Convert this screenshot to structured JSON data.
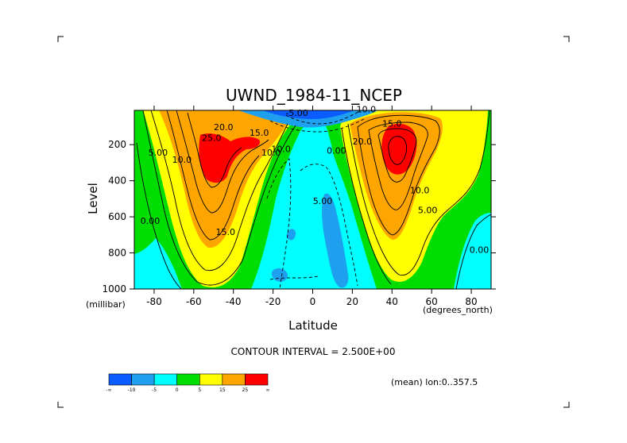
{
  "chart_data": {
    "type": "contour",
    "title": "UWND_1984-11_NCEP",
    "xlabel": "Latitude",
    "ylabel": "Level",
    "x_units": "(degrees_north)",
    "y_units": "(millibar)",
    "xlim": [
      -90,
      90
    ],
    "ylim": [
      1000,
      10
    ],
    "x_ticks": [
      -80,
      -60,
      -40,
      -20,
      0,
      20,
      40,
      60,
      80
    ],
    "y_ticks": [
      200,
      400,
      600,
      800,
      1000
    ],
    "contour_interval_label": "CONTOUR INTERVAL = 2.500E+00",
    "mean_label": "(mean) lon:0..357.5",
    "fill_levels": [
      {
        "range": "< -10",
        "color": "#0a5cff"
      },
      {
        "range": "-10 to -5",
        "color": "#1ea0ee"
      },
      {
        "range": "-5 to 0",
        "color": "#00ffff"
      },
      {
        "range": "0 to 5",
        "color": "#00dd00"
      },
      {
        "range": "5 to 15",
        "color": "#ffff00"
      },
      {
        "range": "15 to 25",
        "color": "#ffa500"
      },
      {
        "range": "> 25",
        "color": "#ff0000"
      }
    ],
    "colorbar_labels": [
      "-∞",
      "-10",
      "-5",
      "0",
      "5",
      "15",
      "25",
      "∞"
    ],
    "contour_labels": [
      {
        "text": "25.0",
        "lat": -51,
        "level": 180
      },
      {
        "text": "20.0",
        "lat": -45,
        "level": 120
      },
      {
        "text": "15.0",
        "lat": -27,
        "level": 150
      },
      {
        "text": "10.0",
        "lat": -66,
        "level": 300
      },
      {
        "text": "5.00",
        "lat": -78,
        "level": 260
      },
      {
        "text": "10.0",
        "lat": -21,
        "level": 260
      },
      {
        "text": "10.0",
        "lat": -16,
        "level": 240
      },
      {
        "text": "15.0",
        "lat": -44,
        "level": 700
      },
      {
        "text": "0.00",
        "lat": -82,
        "level": 640
      },
      {
        "text": "5.00",
        "lat": 5,
        "level": 530
      },
      {
        "text": "0.00",
        "lat": 12,
        "level": 250
      },
      {
        "text": "15.0",
        "lat": 40,
        "level": 100
      },
      {
        "text": "20.0",
        "lat": 25,
        "level": 200
      },
      {
        "text": "10.0",
        "lat": 54,
        "level": 470
      },
      {
        "text": "5.00",
        "lat": 58,
        "level": 580
      },
      {
        "text": "0.00",
        "lat": 84,
        "level": 800
      },
      {
        "text": "10.0",
        "lat": 27,
        "level": 20
      },
      {
        "text": "-5.00",
        "lat": -8,
        "level": 40
      }
    ]
  }
}
